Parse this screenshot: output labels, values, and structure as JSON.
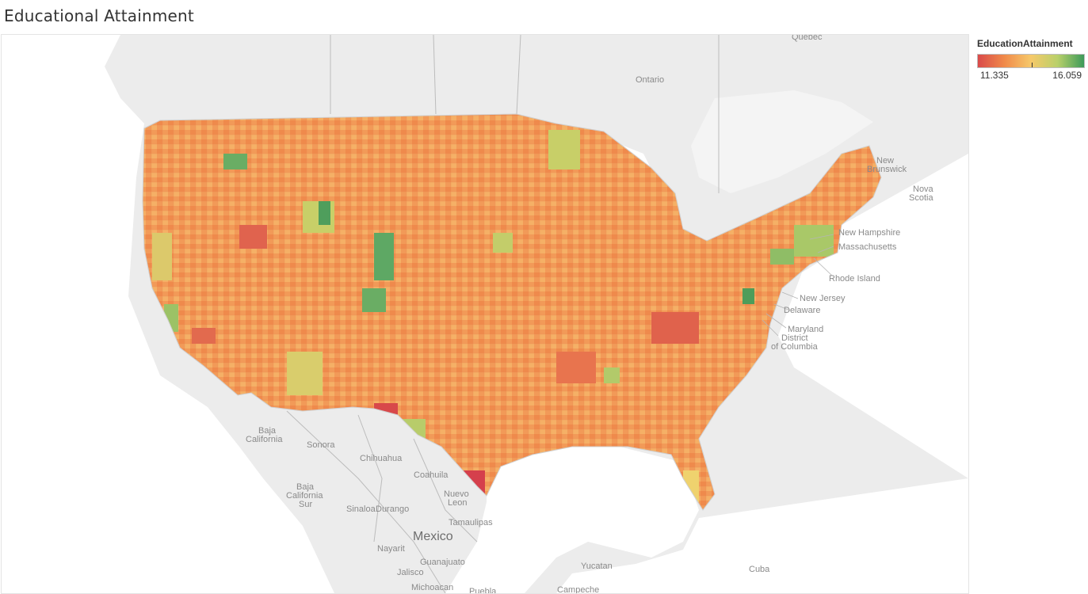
{
  "title": "Educational Attainment",
  "legend": {
    "title": "EducationAttainment",
    "min": "11.335",
    "max": "16.059",
    "colors": [
      "#d94a4a",
      "#f08a4a",
      "#f6c96a",
      "#b9d06a",
      "#3d9a5a"
    ]
  },
  "map": {
    "background_land": "#e9e9e9",
    "water": "#ffffff",
    "regions": {
      "quebec": "Quebec",
      "ontario": "Ontario",
      "new_brunswick_1": "New",
      "new_brunswick_2": "Brunswick",
      "nova_scotia_1": "Nova",
      "nova_scotia_2": "Scotia",
      "baja_california_1": "Baja",
      "baja_california_2": "California",
      "sonora": "Sonora",
      "chihuahua": "Chihuahua",
      "coahuila": "Coahuila",
      "baja_california_sur_1": "Baja",
      "baja_california_sur_2": "California",
      "baja_california_sur_3": "Sur",
      "nuevo_leon_1": "Nuevo",
      "nuevo_leon_2": "Leon",
      "sinaloa": "Sinaloa",
      "durango": "Durango",
      "tamaulipas": "Tamaulipas",
      "mexico": "Mexico",
      "nayarit": "Nayarit",
      "guanajuato": "Guanajuato",
      "jalisco": "Jalisco",
      "michoacan": "Michoacan",
      "puebla": "Puebla",
      "yucatan": "Yucatan",
      "campeche": "Campeche",
      "cuba": "Cuba"
    },
    "callouts": {
      "new_hampshire": "New Hampshire",
      "massachusetts": "Massachusetts",
      "rhode_island": "Rhode Island",
      "new_jersey": "New Jersey",
      "delaware": "Delaware",
      "maryland": "Maryland",
      "dc_1": "District",
      "dc_2": "of Columbia"
    }
  }
}
